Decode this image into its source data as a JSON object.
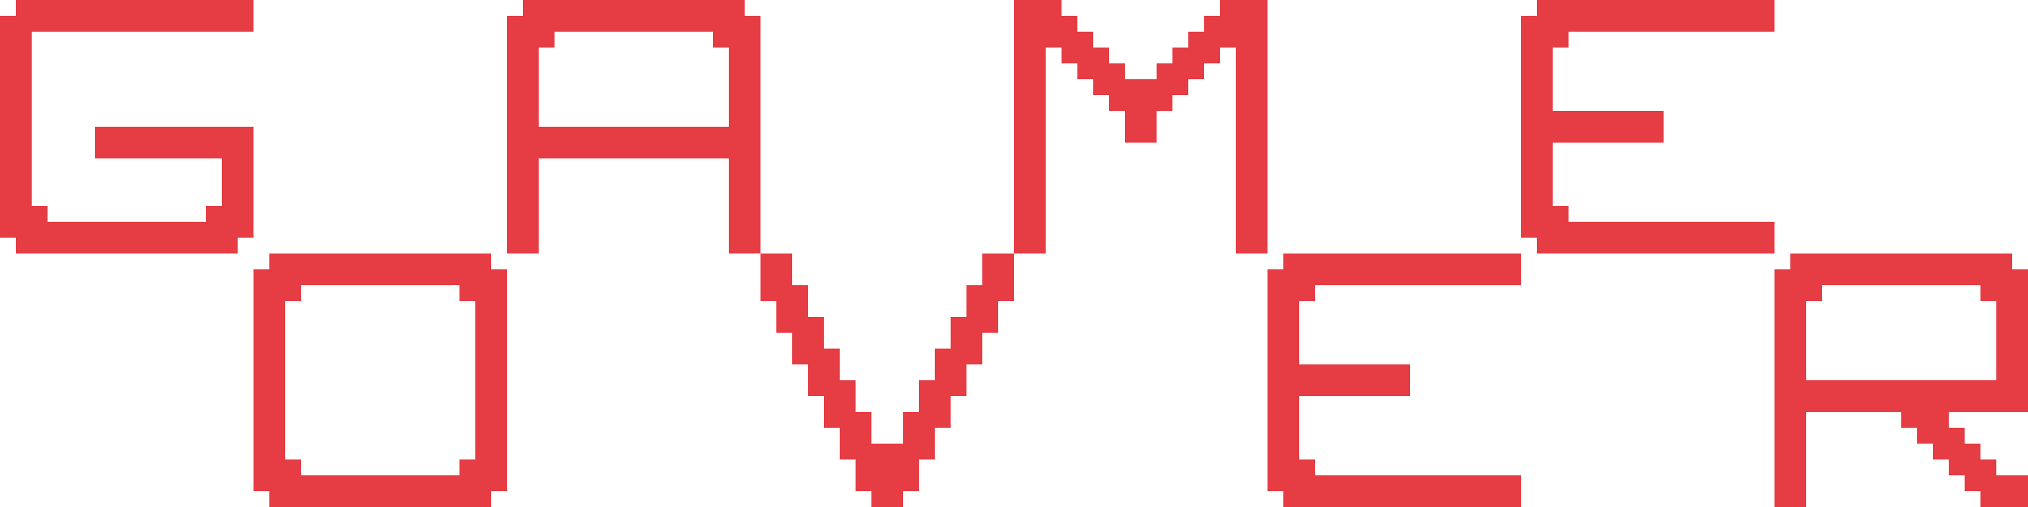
{
  "screen": {
    "title": "GAME OVER",
    "letters": [
      "G",
      "A",
      "M",
      "E",
      "O",
      "V",
      "E",
      "R"
    ],
    "color": "#e63c44",
    "background": "#ffffff"
  }
}
